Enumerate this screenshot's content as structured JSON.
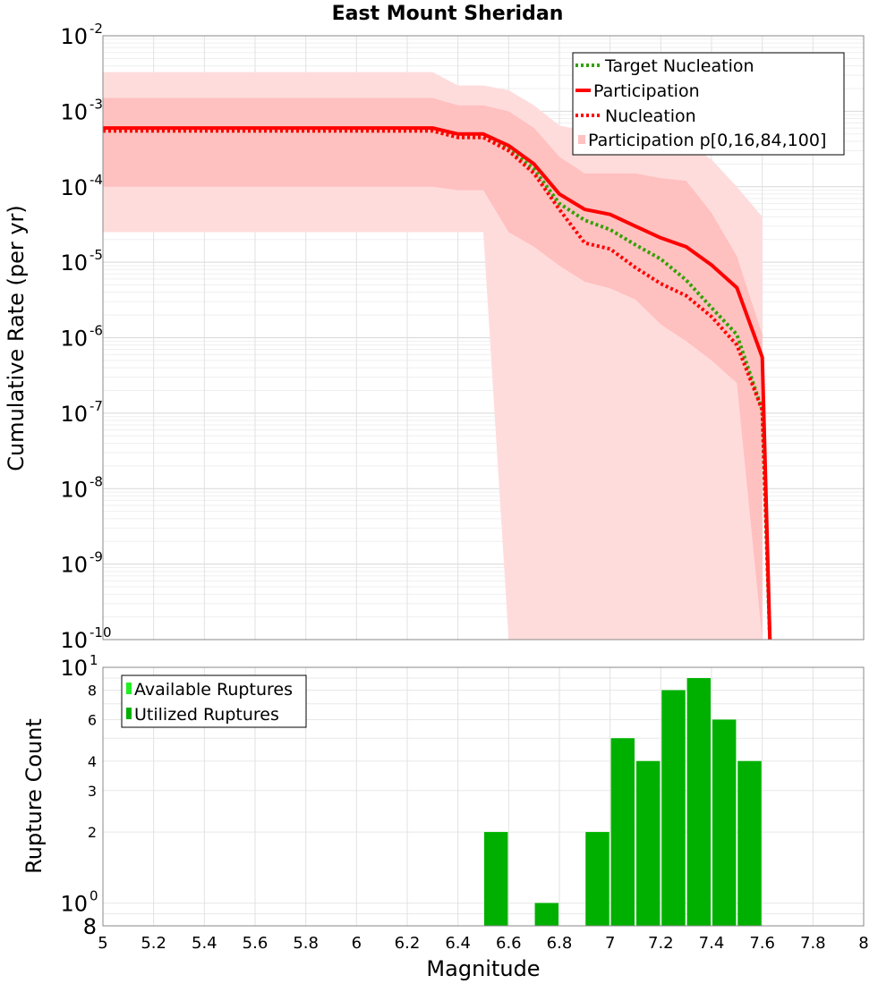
{
  "chart_data": [
    {
      "type": "line",
      "title": "East Mount Sheridan",
      "xlabel": "",
      "ylabel": "Cumulative Rate (per yr)",
      "xlim": [
        5,
        8
      ],
      "ylim": [
        1e-10,
        0.01
      ],
      "yscale": "log",
      "y_tick_labels": [
        {
          "base": "10",
          "exp": "-2"
        },
        {
          "base": "10",
          "exp": "-3"
        },
        {
          "base": "10",
          "exp": "-4"
        },
        {
          "base": "10",
          "exp": "-5"
        },
        {
          "base": "10",
          "exp": "-6"
        },
        {
          "base": "10",
          "exp": "-7"
        },
        {
          "base": "10",
          "exp": "-8"
        },
        {
          "base": "10",
          "exp": "-9"
        },
        {
          "base": "10",
          "exp": "-10"
        }
      ],
      "legend": {
        "position": "top-right",
        "entries": [
          "Target Nucleation",
          "Participation",
          "Nucleation",
          "Participation p[0,16,84,100]"
        ]
      },
      "series": [
        {
          "name": "Target Nucleation",
          "color": "#33a000",
          "style": "dotted",
          "x": [
            5.0,
            6.3,
            6.4,
            6.5,
            6.6,
            6.7,
            6.8,
            6.9,
            7.0,
            7.1,
            7.2,
            7.3,
            7.4,
            7.5,
            7.6,
            7.63
          ],
          "y": [
            0.00055,
            0.00055,
            0.00045,
            0.00045,
            0.00032,
            0.00017,
            6e-05,
            3.6e-05,
            2.7e-05,
            1.7e-05,
            1.1e-05,
            5.8e-06,
            2.5e-06,
            1.1e-06,
            1.1e-07,
            1e-10
          ]
        },
        {
          "name": "Participation",
          "color": "#ff0000",
          "style": "solid",
          "x": [
            5.0,
            6.3,
            6.4,
            6.5,
            6.6,
            6.7,
            6.8,
            6.9,
            7.0,
            7.1,
            7.2,
            7.3,
            7.4,
            7.5,
            7.6,
            7.63
          ],
          "y": [
            0.0006,
            0.0006,
            0.0005,
            0.0005,
            0.00035,
            0.0002,
            8e-05,
            5e-05,
            4.3e-05,
            3e-05,
            2.1e-05,
            1.6e-05,
            9.2e-06,
            4.6e-06,
            5.5e-07,
            1e-10
          ]
        },
        {
          "name": "Nucleation",
          "color": "#ff0000",
          "style": "dotted",
          "x": [
            5.0,
            6.3,
            6.4,
            6.5,
            6.6,
            6.7,
            6.8,
            6.9,
            7.0,
            7.1,
            7.2,
            7.3,
            7.4,
            7.5,
            7.6,
            7.63
          ],
          "y": [
            0.00055,
            0.00055,
            0.00045,
            0.00045,
            0.0003,
            0.00015,
            5e-05,
            1.8e-05,
            1.5e-05,
            8.5e-06,
            5.2e-06,
            3.6e-06,
            1.9e-06,
            8e-07,
            1.1e-07,
            1e-10
          ]
        }
      ],
      "bands": [
        {
          "name": "Participation p[0,100]",
          "color": "#ffdcdc",
          "x": [
            5.0,
            6.3,
            6.4,
            6.5,
            6.6,
            6.7,
            6.8,
            6.9,
            7.0,
            7.1,
            7.2,
            7.3,
            7.4,
            7.5,
            7.6
          ],
          "upper": [
            0.0033,
            0.0033,
            0.0022,
            0.0022,
            0.0019,
            0.0012,
            0.00065,
            0.00055,
            0.00052,
            0.00052,
            0.00045,
            0.0004,
            0.00023,
            0.0001,
            4e-05
          ],
          "lower": [
            2.5e-05,
            2.5e-05,
            2.5e-05,
            2.5e-05,
            1e-10,
            1e-10,
            1e-10,
            1e-10,
            1e-10,
            1e-10,
            1e-10,
            1e-10,
            1e-10,
            1e-10,
            1e-10
          ]
        },
        {
          "name": "Participation p[16,84]",
          "color": "#ffc0c0",
          "x": [
            5.0,
            6.3,
            6.4,
            6.5,
            6.6,
            6.7,
            6.8,
            6.9,
            7.0,
            7.1,
            7.2,
            7.3,
            7.4,
            7.5,
            7.6
          ],
          "upper": [
            0.0015,
            0.0015,
            0.0012,
            0.0012,
            0.001,
            0.0006,
            0.00025,
            0.00015,
            0.00015,
            0.00015,
            0.00013,
            0.00012,
            4.5e-05,
            1.2e-05,
            1.1e-06
          ],
          "lower": [
            0.0001,
            0.0001,
            9e-05,
            9e-05,
            2.5e-05,
            1.6e-05,
            9e-06,
            5.5e-06,
            4.5e-06,
            3.2e-06,
            1.5e-06,
            9e-07,
            5e-07,
            2.5e-07,
            1e-10
          ]
        }
      ]
    },
    {
      "type": "bar",
      "title": "",
      "xlabel": "Magnitude",
      "ylabel": "Rupture Count",
      "xlim": [
        5,
        8
      ],
      "ylim": [
        0.8,
        10
      ],
      "yscale": "log",
      "x_ticks": [
        "5",
        "5.2",
        "5.4",
        "5.6",
        "5.8",
        "6",
        "6.2",
        "6.4",
        "6.6",
        "6.8",
        "7",
        "7.2",
        "7.4",
        "7.6",
        "7.8",
        "8"
      ],
      "y_major_labels": [
        {
          "base": "10",
          "exp": "1",
          "value": 10
        },
        {
          "base": "10",
          "exp": "0",
          "value": 1
        }
      ],
      "y_minor_labels": [
        {
          "label": "8",
          "value": 8
        },
        {
          "label": "6",
          "value": 6
        },
        {
          "label": "4",
          "value": 4
        },
        {
          "label": "3",
          "value": 3
        },
        {
          "label": "2",
          "value": 2
        },
        {
          "label": "8",
          "value": 0.8
        }
      ],
      "legend": {
        "position": "top-left",
        "entries": [
          "Available Ruptures",
          "Utilized Ruptures"
        ]
      },
      "series": [
        {
          "name": "Available Ruptures",
          "color": "#22ee22",
          "x": [
            6.55,
            6.75,
            6.95,
            7.05,
            7.15,
            7.25,
            7.35,
            7.45,
            7.55
          ],
          "values": [
            2,
            1,
            2,
            5,
            4,
            8,
            9,
            6,
            4
          ]
        },
        {
          "name": "Utilized Ruptures",
          "color": "#00b000",
          "x": [
            6.55,
            6.75,
            6.95,
            7.05,
            7.15,
            7.25,
            7.35,
            7.45,
            7.55
          ],
          "values": [
            2,
            1,
            2,
            5,
            4,
            8,
            9,
            6,
            4
          ]
        }
      ]
    }
  ]
}
